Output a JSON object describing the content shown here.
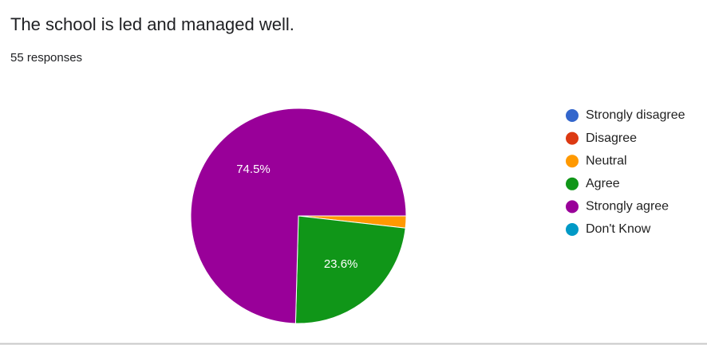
{
  "chart_data": {
    "type": "pie",
    "title": "The school is led and managed well.",
    "subtitle": "55 responses",
    "categories": [
      "Strongly disagree",
      "Disagree",
      "Neutral",
      "Agree",
      "Strongly agree",
      "Don't Know"
    ],
    "values": [
      0,
      0,
      1.8,
      23.6,
      74.5,
      0
    ],
    "value_labels": [
      null,
      null,
      null,
      "23.6%",
      "74.5%",
      null
    ],
    "colors": [
      "#3366cc",
      "#dc3912",
      "#ff9900",
      "#109618",
      "#990099",
      "#0099c6"
    ],
    "legend": "right"
  }
}
